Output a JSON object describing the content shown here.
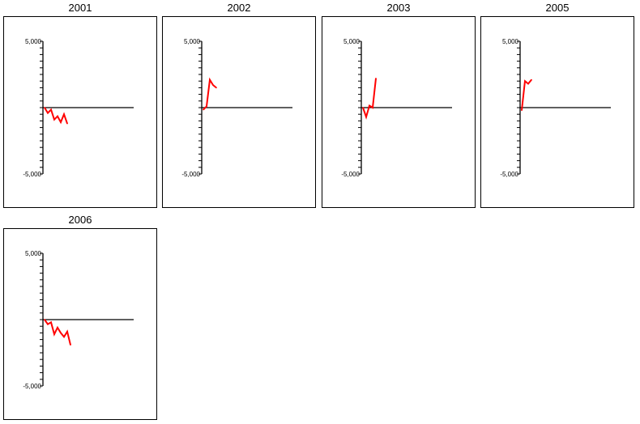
{
  "colors": {
    "series": "#ff0000",
    "axis": "#000000",
    "frame": "#000000",
    "background": "#ffffff"
  },
  "chart_data": [
    {
      "type": "line",
      "title": "2001",
      "ylim": [
        -5000,
        5000
      ],
      "y_tick_labels": [
        "5,000",
        "-5,000"
      ],
      "grid": false,
      "x": [
        0,
        1,
        2,
        3,
        4,
        5,
        6,
        7
      ],
      "values": [
        0,
        -400,
        -150,
        -900,
        -650,
        -1100,
        -500,
        -1200
      ]
    },
    {
      "type": "line",
      "title": "2002",
      "ylim": [
        -5000,
        5000
      ],
      "y_tick_labels": [
        "5,000",
        "-5,000"
      ],
      "grid": false,
      "x": [
        0,
        1,
        2,
        3,
        4
      ],
      "values": [
        -150,
        100,
        2100,
        1700,
        1500
      ]
    },
    {
      "type": "line",
      "title": "2003",
      "ylim": [
        -5000,
        5000
      ],
      "y_tick_labels": [
        "5,000",
        "-5,000"
      ],
      "grid": false,
      "x": [
        0,
        1,
        2,
        3,
        4
      ],
      "values": [
        0,
        -700,
        150,
        0,
        2200
      ]
    },
    {
      "type": "line",
      "title": "2005",
      "ylim": [
        -5000,
        5000
      ],
      "y_tick_labels": [
        "5,000",
        "-5,000"
      ],
      "grid": false,
      "x": [
        0,
        1,
        2,
        3
      ],
      "values": [
        -200,
        2000,
        1800,
        2100
      ]
    },
    {
      "type": "line",
      "title": "2006",
      "ylim": [
        -5000,
        5000
      ],
      "y_tick_labels": [
        "5,000",
        "-5,000"
      ],
      "grid": false,
      "x": [
        0,
        1,
        2,
        3,
        4,
        5,
        6,
        7,
        8
      ],
      "values": [
        0,
        -350,
        -200,
        -1100,
        -600,
        -1000,
        -1300,
        -900,
        -1900
      ]
    }
  ]
}
